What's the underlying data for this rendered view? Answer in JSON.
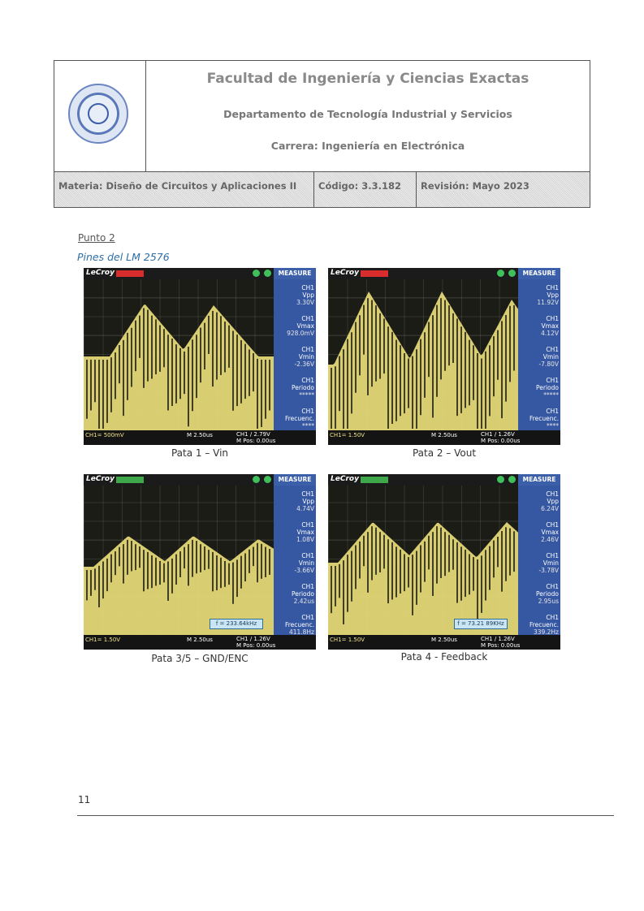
{
  "header": {
    "faculty": "Facultad de Ingeniería y Ciencias Exactas",
    "department": "Departamento de Tecnología Industrial y Servicios",
    "career": "Carrera: Ingeniería en Electrónica",
    "subject": "Materia: Diseño de Circuitos y Aplicaciones II",
    "code": "Código: 3.3.182",
    "revision": "Revisión: Mayo 2023"
  },
  "section": {
    "punto": "Punto 2",
    "subtitle": "Pines del LM 2576"
  },
  "scopes": [
    {
      "brand": "LeCroy",
      "mode_color": "#d92c2c",
      "measure": "MEASURE",
      "readings": [
        {
          "label": "CH1",
          "name": "Vpp",
          "value": "3.30V"
        },
        {
          "label": "CH1",
          "name": "Vmax",
          "value": "928.0mV"
        },
        {
          "label": "CH1",
          "name": "Vmin",
          "value": "-2.36V"
        },
        {
          "label": "CH1",
          "name": "Periodo",
          "value": "*****"
        },
        {
          "label": "CH1",
          "name": "Frecuenc.",
          "value": "****"
        }
      ],
      "freq_box": "",
      "bottom_left": "CH1= 500mV",
      "bottom_mid": "M 2.50us",
      "bottom_right": "CH1 / 2.79V",
      "bottom_pos": "M Pos: 0.00us",
      "caption": "Pata 1 – Vin"
    },
    {
      "brand": "LeCroy",
      "mode_color": "#d92c2c",
      "measure": "MEASURE",
      "readings": [
        {
          "label": "CH1",
          "name": "Vpp",
          "value": "11.92V"
        },
        {
          "label": "CH1",
          "name": "Vmax",
          "value": "4.12V"
        },
        {
          "label": "CH1",
          "name": "Vmin",
          "value": "-7.80V"
        },
        {
          "label": "CH1",
          "name": "Periodo",
          "value": "*****"
        },
        {
          "label": "CH1",
          "name": "Frecuenc.",
          "value": "****"
        }
      ],
      "freq_box": "",
      "bottom_left": "CH1= 1.50V",
      "bottom_mid": "M 2.50us",
      "bottom_right": "CH1 / 1.26V",
      "bottom_pos": "M Pos: 0.00us",
      "caption": "Pata 2 – Vout"
    },
    {
      "brand": "LeCroy",
      "mode_color": "#3fa84a",
      "measure": "MEASURE",
      "readings": [
        {
          "label": "CH1",
          "name": "Vpp",
          "value": "4.74V"
        },
        {
          "label": "CH1",
          "name": "Vmax",
          "value": "1.08V"
        },
        {
          "label": "CH1",
          "name": "Vmin",
          "value": "-3.66V"
        },
        {
          "label": "CH1",
          "name": "Periodo",
          "value": "2.42us"
        },
        {
          "label": "CH1",
          "name": "Frecuenc.",
          "value": "411.8Hz"
        }
      ],
      "freq_box": "f = 233.64kHz",
      "bottom_left": "CH1= 1.50V",
      "bottom_mid": "M 2.50us",
      "bottom_right": "CH1 / 1.26V",
      "bottom_pos": "M Pos: 0.00us",
      "caption": "Pata 3/5 – GND/ENC"
    },
    {
      "brand": "LeCroy",
      "mode_color": "#3fa84a",
      "measure": "MEASURE",
      "readings": [
        {
          "label": "CH1",
          "name": "Vpp",
          "value": "6.24V"
        },
        {
          "label": "CH1",
          "name": "Vmax",
          "value": "2.46V"
        },
        {
          "label": "CH1",
          "name": "Vmin",
          "value": "-3.78V"
        },
        {
          "label": "CH1",
          "name": "Periodo",
          "value": "2.95us"
        },
        {
          "label": "CH1",
          "name": "Frecuenc.",
          "value": "339.2Hz"
        }
      ],
      "freq_box": "f = 73.21 89KHz",
      "bottom_left": "CH1= 1.50V",
      "bottom_mid": "M 2.50us",
      "bottom_right": "CH1 / 1.26V",
      "bottom_pos": "M Pos: 0.00us",
      "caption": "Pata 4 - Feedback"
    }
  ],
  "footer": {
    "page_number": "11"
  }
}
